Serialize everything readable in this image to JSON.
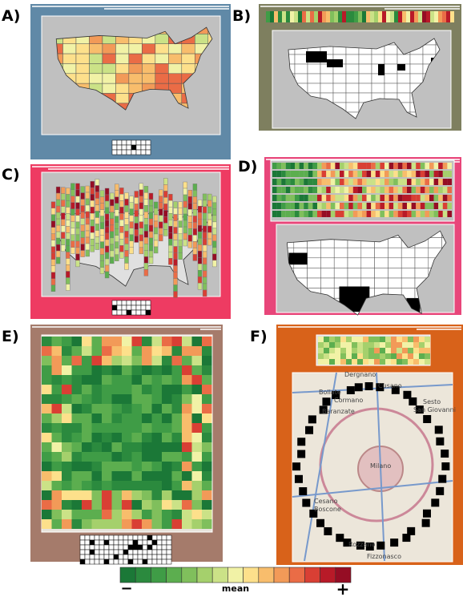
{
  "panels": [
    {
      "label": "A)"
    },
    {
      "label": "B)"
    },
    {
      "label": "C)"
    },
    {
      "label": "D)"
    },
    {
      "label": "E)"
    },
    {
      "label": "F)"
    }
  ],
  "map_labels": [
    "Dergnano",
    "Bollate",
    "Cusano",
    "Cormano",
    "Baranzate",
    "Sesto",
    "San Giovanni",
    "Milano",
    "Cesano",
    "Boscone",
    "Rozzano",
    "Fizzonasco"
  ],
  "legend": {
    "colors": [
      "#1b7837",
      "#2b8a3e",
      "#3f9c46",
      "#5cae4f",
      "#80bf5c",
      "#a5d06c",
      "#cbe287",
      "#f1f2a6",
      "#fde08b",
      "#f8bd6c",
      "#f29a58",
      "#ea6c46",
      "#d93f34",
      "#b81a28",
      "#950d24"
    ],
    "minus": "−",
    "label": "mean",
    "plus": "+"
  }
}
